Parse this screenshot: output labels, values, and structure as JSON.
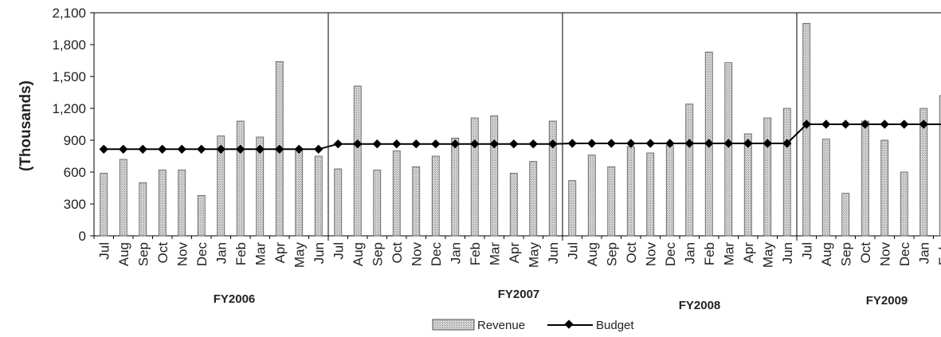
{
  "chart_data": {
    "type": "bar",
    "ylabel": "(Thousands)",
    "ylim": [
      0,
      2100
    ],
    "y_ticks": [
      "0",
      "300",
      "600",
      "900",
      "1,200",
      "1,500",
      "1,800",
      "2,100"
    ],
    "y_tick_values": [
      0,
      300,
      600,
      900,
      1200,
      1500,
      1800,
      2100
    ],
    "categories": [
      "Jul",
      "Aug",
      "Sep",
      "Oct",
      "Nov",
      "Dec",
      "Jan",
      "Feb",
      "Mar",
      "Apr",
      "May",
      "Jun",
      "Jul",
      "Aug",
      "Sep",
      "Oct",
      "Nov",
      "Dec",
      "Jan",
      "Feb",
      "Mar",
      "Apr",
      "May",
      "Jun",
      "Jul",
      "Aug",
      "Sep",
      "Oct",
      "Nov",
      "Dec",
      "Jan",
      "Feb",
      "Mar",
      "Apr",
      "May",
      "Jun",
      "Jul",
      "Aug",
      "Sep",
      "Oct",
      "Nov",
      "Dec",
      "Jan",
      "Feb"
    ],
    "groups": [
      {
        "label": "FY2006",
        "start": 0,
        "count": 12
      },
      {
        "label": "FY2007",
        "start": 12,
        "count": 12
      },
      {
        "label": "FY2008",
        "start": 24,
        "count": 12
      },
      {
        "label": "FY2009",
        "start": 36,
        "count": 8
      }
    ],
    "series": [
      {
        "name": "Revenue",
        "kind": "bar",
        "values": [
          590,
          720,
          500,
          620,
          620,
          380,
          940,
          1080,
          930,
          1640,
          810,
          750,
          630,
          1410,
          620,
          800,
          650,
          750,
          920,
          1110,
          1130,
          590,
          700,
          1080,
          520,
          760,
          650,
          840,
          780,
          850,
          1240,
          1730,
          1630,
          960,
          1110,
          1200,
          2000,
          910,
          400,
          1080,
          900,
          600,
          1200,
          1320
        ]
      },
      {
        "name": "Budget",
        "kind": "line",
        "values": [
          815,
          815,
          815,
          815,
          815,
          815,
          815,
          815,
          815,
          815,
          815,
          815,
          865,
          865,
          865,
          865,
          865,
          865,
          865,
          865,
          865,
          865,
          865,
          865,
          870,
          870,
          870,
          870,
          870,
          870,
          870,
          870,
          870,
          870,
          870,
          870,
          1050,
          1050,
          1050,
          1050,
          1050,
          1050,
          1050,
          1050
        ]
      }
    ],
    "legend_position": "bottom-center",
    "grid": false,
    "colors": {
      "bar_fill": "#c8c8c8",
      "bar_stroke": "#555555",
      "line": "#000000"
    }
  }
}
